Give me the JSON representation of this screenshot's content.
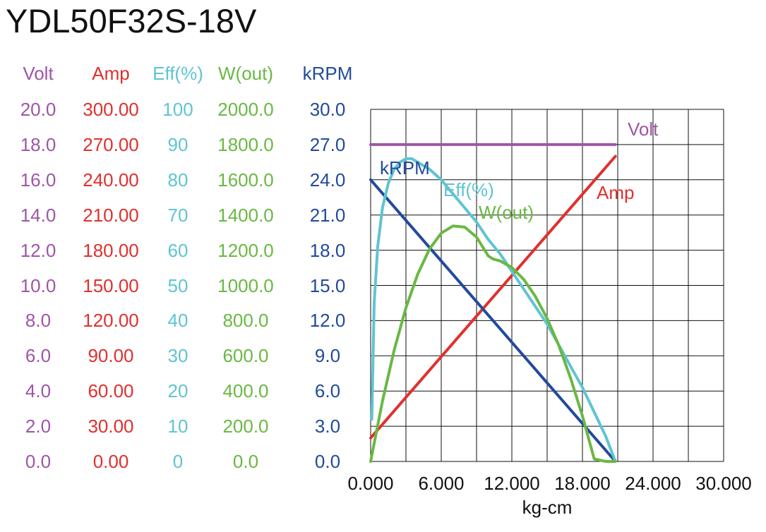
{
  "title": "YDL50F32S-18V",
  "colors": {
    "volt": "#9e56a6",
    "amp": "#e0302e",
    "eff": "#5fc4d2",
    "wout": "#6ab843",
    "krpm": "#224a9c",
    "grid": "#111111",
    "text": "#111111"
  },
  "chart_data": {
    "type": "line",
    "title": "YDL50F32S-18V",
    "xlabel": "kg-cm",
    "xlim": [
      0,
      30
    ],
    "x_tick_labels": [
      "0.000",
      "6.000",
      "12.000",
      "18.000",
      "24.000",
      "30.000"
    ],
    "grid": true,
    "axes": [
      {
        "key": "volt",
        "label": "Volt",
        "min": 0,
        "max": 20,
        "ticks": [
          "0.0",
          "2.0",
          "4.0",
          "6.0",
          "8.0",
          "10.0",
          "12.0",
          "14.0",
          "16.0",
          "18.0",
          "20.0"
        ]
      },
      {
        "key": "amp",
        "label": "Amp",
        "min": 0,
        "max": 300,
        "ticks": [
          "0.00",
          "30.00",
          "60.00",
          "90.00",
          "120.00",
          "150.00",
          "180.00",
          "210.00",
          "240.00",
          "270.00",
          "300.00"
        ]
      },
      {
        "key": "eff",
        "label": "Eff(%)",
        "min": 0,
        "max": 100,
        "ticks": [
          "0",
          "10",
          "20",
          "30",
          "40",
          "50",
          "60",
          "70",
          "80",
          "90",
          "100"
        ]
      },
      {
        "key": "wout",
        "label": "W(out)",
        "min": 0,
        "max": 2000,
        "ticks": [
          "0.0",
          "200.0",
          "400.0",
          "600.0",
          "800.0",
          "1000.0",
          "1200.0",
          "1400.0",
          "1600.0",
          "1800.0",
          "2000.0"
        ]
      },
      {
        "key": "krpm",
        "label": "kRPM",
        "min": 0,
        "max": 30,
        "ticks": [
          "0.0",
          "3.0",
          "6.0",
          "9.0",
          "12.0",
          "15.0",
          "18.0",
          "21.0",
          "24.0",
          "27.0",
          "30.0"
        ]
      }
    ],
    "series": [
      {
        "name": "Volt",
        "axis": "volt",
        "x": [
          0,
          20.8
        ],
        "values": [
          18.0,
          18.0
        ]
      },
      {
        "name": "Amp",
        "axis": "amp",
        "x": [
          0,
          20.8
        ],
        "values": [
          20,
          260
        ]
      },
      {
        "name": "kRPM",
        "axis": "krpm",
        "x": [
          0,
          20.8
        ],
        "values": [
          24.0,
          0
        ]
      },
      {
        "name": "Eff(%)",
        "axis": "eff",
        "x": [
          0.1,
          0.3,
          0.6,
          1.0,
          1.5,
          2.0,
          2.5,
          3.0,
          3.5,
          4.0,
          5.0,
          6.0,
          7.0,
          8.0,
          9.0,
          10.0,
          11.0,
          12.0,
          13.0,
          14.0,
          15.0,
          16.0,
          17.0,
          18.0,
          19.0,
          20.0,
          20.8
        ],
        "values": [
          12,
          45,
          61,
          72,
          79,
          83,
          85,
          86,
          86,
          85,
          83,
          80,
          76,
          72,
          68,
          63,
          59,
          54,
          49,
          44,
          39,
          33,
          27,
          21,
          14,
          7,
          0
        ]
      },
      {
        "name": "W(out)",
        "axis": "wout",
        "x": [
          0,
          1,
          2,
          3,
          4,
          5,
          6,
          7,
          8,
          9,
          10,
          10.4,
          11,
          12,
          13,
          14,
          15,
          16,
          17,
          18,
          19,
          20,
          20.8
        ],
        "values": [
          0,
          342,
          632,
          873,
          1064,
          1206,
          1297,
          1338,
          1331,
          1274,
          1167,
          1150,
          1139,
          1102,
          1035,
          938,
          812,
          657,
          472,
          258,
          14,
          -60,
          0
        ]
      }
    ],
    "annotations": [
      {
        "series": "Volt",
        "text": "Volt"
      },
      {
        "series": "kRPM",
        "text": "kRPM"
      },
      {
        "series": "Eff(%)",
        "text": "Eff(%)"
      },
      {
        "series": "W(out)",
        "text": "W(out)"
      },
      {
        "series": "Amp",
        "text": "Amp"
      }
    ]
  }
}
